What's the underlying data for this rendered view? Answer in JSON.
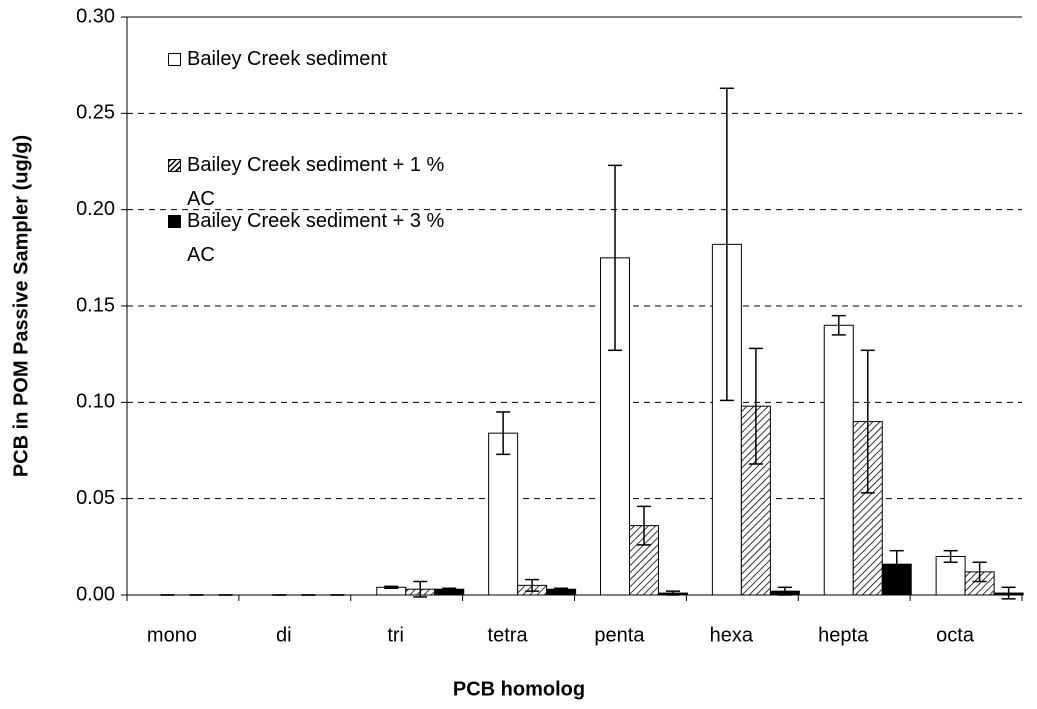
{
  "chart_data": {
    "type": "bar",
    "xlabel": "PCB homolog",
    "ylabel": "PCB in POM Passive Sampler (ug/g)",
    "categories": [
      "mono",
      "di",
      "tri",
      "tetra",
      "penta",
      "hexa",
      "hepta",
      "octa"
    ],
    "series": [
      {
        "name": "Bailey Creek sediment",
        "color": "#ffffff",
        "hatch": false,
        "values": [
          0,
          0,
          0.004,
          0.084,
          0.175,
          0.182,
          0.14,
          0.02
        ],
        "errors": [
          0,
          0,
          0.0005,
          0.011,
          0.048,
          0.081,
          0.005,
          0.003
        ]
      },
      {
        "name": "Bailey Creek sediment + 1 % AC",
        "color": "#ffffff",
        "hatch": true,
        "values": [
          0,
          0,
          0.003,
          0.005,
          0.036,
          0.098,
          0.09,
          0.012
        ],
        "errors": [
          0,
          0,
          0.004,
          0.003,
          0.01,
          0.03,
          0.037,
          0.005
        ]
      },
      {
        "name": "Bailey Creek sediment + 3 % AC",
        "color": "#000000",
        "hatch": false,
        "values": [
          0,
          0,
          0.003,
          0.003,
          0.001,
          0.002,
          0.016,
          0.001
        ],
        "errors": [
          0,
          0,
          0.0005,
          0.0005,
          0.001,
          0.002,
          0.007,
          0.003
        ]
      }
    ],
    "ylim": [
      0,
      0.3
    ],
    "yticks": [
      {
        "value": 0,
        "label": "0.00"
      },
      {
        "value": 0.05,
        "label": "0.05"
      },
      {
        "value": 0.1,
        "label": "0.10"
      },
      {
        "value": 0.15,
        "label": "0.15"
      },
      {
        "value": 0.2,
        "label": "0.20"
      },
      {
        "value": 0.25,
        "label": "0.25"
      },
      {
        "value": 0.3,
        "label": "0.30"
      }
    ],
    "grid": true,
    "legend": "upper left"
  }
}
